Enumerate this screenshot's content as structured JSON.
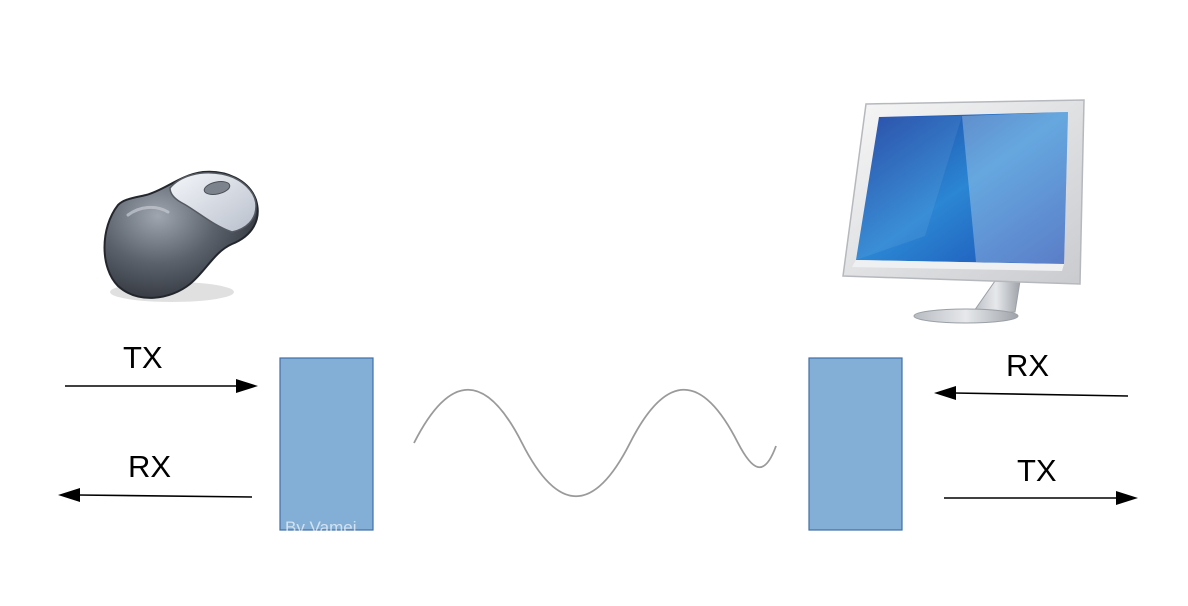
{
  "labels": {
    "left_tx": "TX",
    "left_rx": "RX",
    "right_rx": "RX",
    "right_tx": "TX"
  },
  "watermark": "By Vamei",
  "icons": {
    "device": "mouse-icon",
    "host": "computer-monitor-icon"
  },
  "colors": {
    "transceiver_fill": "#83aed6",
    "transceiver_stroke": "#3f70a8",
    "arrow": "#000000",
    "wave": "#9a9a9a"
  }
}
